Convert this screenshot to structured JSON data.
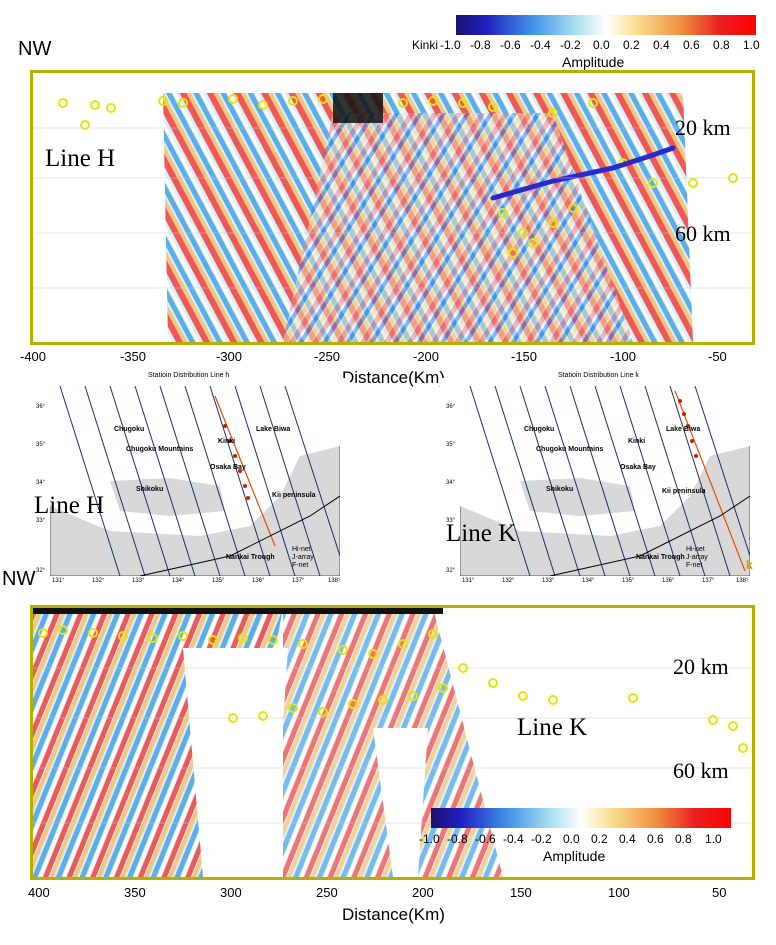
{
  "top_section": {
    "region_label": "Kinki",
    "nw_label": "NW",
    "line_label": "Line H",
    "depth_labels": [
      "20 km",
      "60 km"
    ],
    "x_ticks": [
      "-400",
      "-350",
      "-300",
      "-250",
      "-200",
      "-150",
      "-100",
      "-50"
    ],
    "x_title": "Distance(Km)",
    "colorbar": {
      "ticks": [
        "-1.0",
        "-0.8",
        "-0.6",
        "-0.4",
        "-0.2",
        "0.0",
        "0.2",
        "0.4",
        "0.6",
        "0.8",
        "1.0"
      ],
      "title": "Amplitude"
    }
  },
  "map_h": {
    "title": "Statioin Distribution Line h",
    "overlay_label": "Line H",
    "lat_labels": [
      "36°",
      "35°",
      "34°",
      "33°",
      "32°"
    ],
    "lon_labels": [
      "131°",
      "132°",
      "133°",
      "134°",
      "135°",
      "136°",
      "137°",
      "138°"
    ],
    "places": [
      "Chugoku",
      "Chugoku Mountains",
      "Kinki",
      "Lake Biwa",
      "Osaka Bay",
      "Shikoku",
      "Kii peninsula",
      "Nankai Trough"
    ],
    "profile_letters": [
      "a",
      "b",
      "c",
      "d",
      "e",
      "f",
      "g",
      "h",
      "i",
      "j",
      "k"
    ],
    "legend": [
      "Hi-net",
      "J-array",
      "F-net"
    ]
  },
  "map_k": {
    "title": "Statioin Distribution Line k",
    "overlay_label": "Line K",
    "lat_labels": [
      "36°",
      "35°",
      "34°",
      "33°",
      "32°"
    ],
    "lon_labels": [
      "131°",
      "132°",
      "133°",
      "134°",
      "135°",
      "136°",
      "137°",
      "138°"
    ],
    "places": [
      "Chugoku",
      "Chugoku Mountains",
      "Kinki",
      "Lake Biwa",
      "Osaka Bay",
      "Shikoku",
      "Kii peninsula",
      "Nankai Trough"
    ],
    "profile_letters": [
      "a",
      "b",
      "c",
      "d",
      "e",
      "f",
      "g",
      "h",
      "i",
      "j",
      "k"
    ],
    "legend": [
      "Hi-net",
      "J-array",
      "F-net"
    ],
    "edge_letter": "k"
  },
  "bottom_section": {
    "nw_label": "NW",
    "line_label": "Line K",
    "depth_labels": [
      "20 km",
      "60 km"
    ],
    "x_ticks": [
      "400",
      "350",
      "300",
      "250",
      "200",
      "150",
      "100",
      "50"
    ],
    "x_title": "Distance(Km)",
    "colorbar": {
      "ticks": [
        "-1.0",
        "-0.8",
        "-0.6",
        "-0.4",
        "-0.2",
        "0.0",
        "0.2",
        "0.4",
        "0.6",
        "0.8",
        "1.0"
      ],
      "title": "Amplitude"
    }
  },
  "colors": {
    "frame": "#b8b000",
    "quake_ring": "#e6e600",
    "slab_line": "#2a2acc",
    "trough_line": "#e05000"
  }
}
